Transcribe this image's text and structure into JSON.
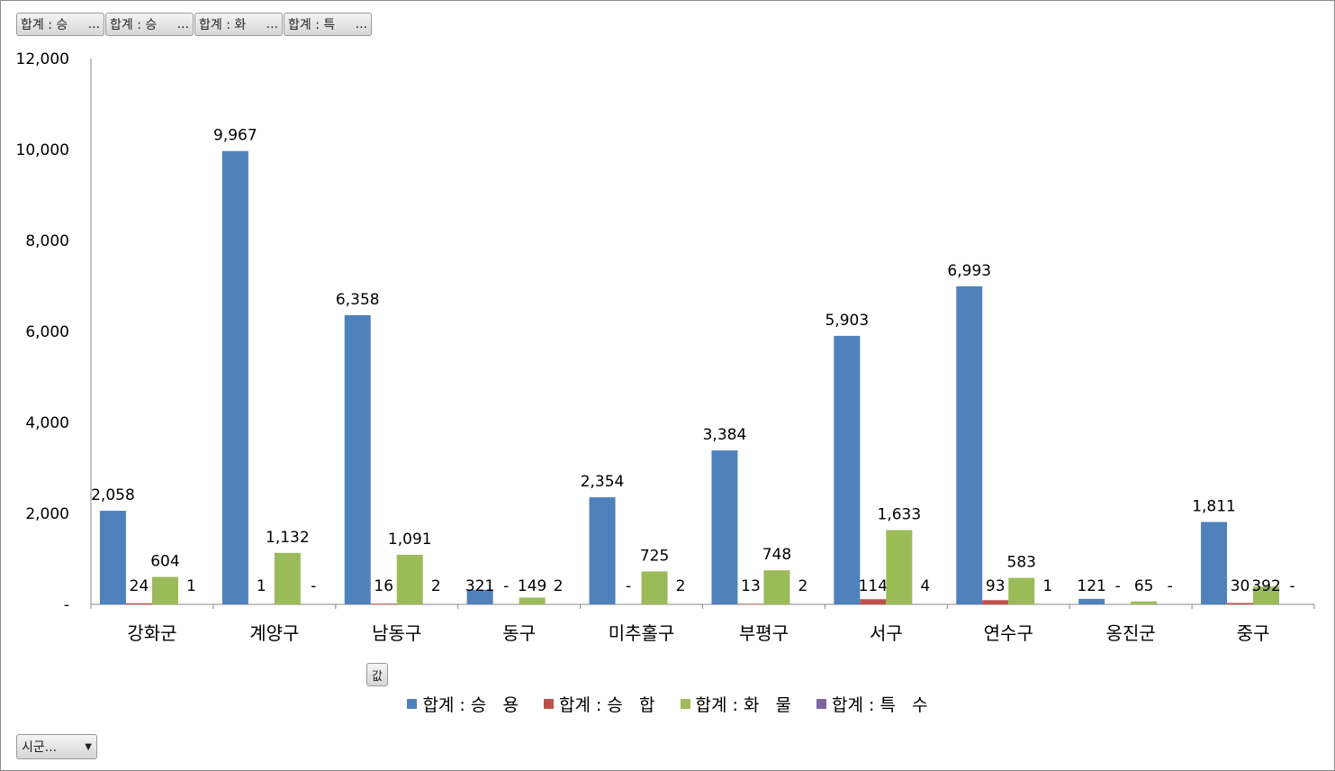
{
  "field_buttons": [
    {
      "label": "합계 : 승",
      "ellipsis": "..."
    },
    {
      "label": "합계 : 승",
      "ellipsis": "..."
    },
    {
      "label": "합계 : 화",
      "ellipsis": "..."
    },
    {
      "label": "합계 : 특",
      "ellipsis": "..."
    }
  ],
  "values_button": {
    "label": "값"
  },
  "axis_field_button": {
    "label": "시군...",
    "dropdown_icon": "triangle-down"
  },
  "colors": {
    "series1": "#4F81BD",
    "series2": "#C0504D",
    "series3": "#9BBB59",
    "series4": "#8064A2",
    "axis": "#878787"
  },
  "chart_data": {
    "type": "bar",
    "categories": [
      "강화군",
      "계양구",
      "남동구",
      "동구",
      "미추홀구",
      "부평구",
      "서구",
      "연수구",
      "옹진군",
      "중구"
    ],
    "series": [
      {
        "name": "합계 : 승   용",
        "values": [
          2058,
          9967,
          6358,
          321,
          2354,
          3384,
          5903,
          6993,
          121,
          1811
        ],
        "labels": [
          "2,058",
          "9,967",
          "6,358",
          "321",
          "2,354",
          "3,384",
          "5,903",
          "6,993",
          "121",
          "1,811"
        ]
      },
      {
        "name": "합계 : 승   합",
        "values": [
          24,
          1,
          16,
          0,
          0,
          13,
          114,
          93,
          0,
          30
        ],
        "labels": [
          "24",
          "1",
          "16",
          "-",
          "-",
          "13",
          "114",
          "93",
          "-",
          "30"
        ]
      },
      {
        "name": "합계 : 화   물",
        "values": [
          604,
          1132,
          1091,
          149,
          725,
          748,
          1633,
          583,
          65,
          392
        ],
        "labels": [
          "604",
          "1,132",
          "1,091",
          "149",
          "725",
          "748",
          "1,633",
          "583",
          "65",
          "392"
        ]
      },
      {
        "name": "합계 : 특   수",
        "values": [
          1,
          0,
          2,
          2,
          2,
          2,
          4,
          1,
          0,
          0
        ],
        "labels": [
          "1",
          "-",
          "2",
          "2",
          "2",
          "2",
          "4",
          "1",
          "-",
          "-"
        ]
      }
    ],
    "ylim": [
      0,
      12000
    ],
    "yticks": [
      0,
      2000,
      4000,
      6000,
      8000,
      10000,
      12000
    ],
    "ytick_labels": [
      "-",
      "2,000",
      "4,000",
      "6,000",
      "8,000",
      "10,000",
      "12,000"
    ],
    "legend_position": "bottom",
    "grid": false
  }
}
